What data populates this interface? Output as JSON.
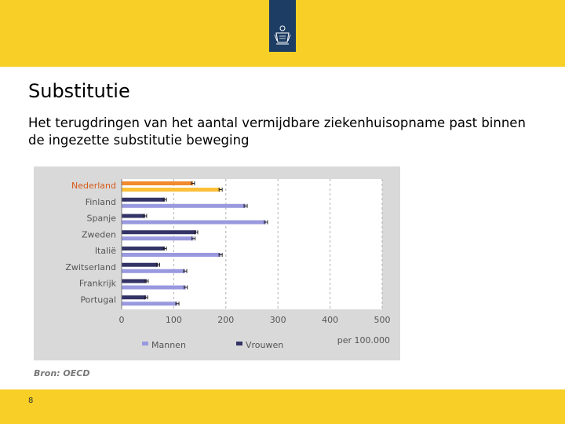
{
  "slide": {
    "title": "Substitutie",
    "subtitle": "Het terugdringen van het aantal vermijdbare ziekenhuisopname past binnen de ingezette substitutie beweging",
    "source": "Bron: OECD",
    "page_number": "8"
  },
  "colors": {
    "band": "#f7cf26",
    "logo": "#1e3d64",
    "mannen": "#9999e0",
    "vrouwen": "#333366",
    "nl_vrouwen": "#f08a2c",
    "nl_mannen": "#fbbf3a",
    "nl_label": "#d55a18"
  },
  "chart_data": {
    "type": "bar",
    "orientation": "horizontal",
    "categories": [
      "Nederland",
      "Finland",
      "Spanje",
      "Zweden",
      "Italië",
      "Zwitserland",
      "Frankrijk",
      "Portugal"
    ],
    "highlight": "Nederland",
    "series": [
      {
        "name": "Vrouwen",
        "values": [
          137,
          83,
          45,
          143,
          83,
          70,
          48,
          47
        ]
      },
      {
        "name": "Mannen",
        "values": [
          190,
          238,
          277,
          138,
          190,
          122,
          123,
          107
        ]
      }
    ],
    "xticks": [
      0,
      100,
      200,
      300,
      400,
      500
    ],
    "xlim": [
      0,
      500
    ],
    "unit_label": "per 100.000",
    "legend": [
      "Mannen",
      "Vrouwen"
    ],
    "grid": true
  }
}
